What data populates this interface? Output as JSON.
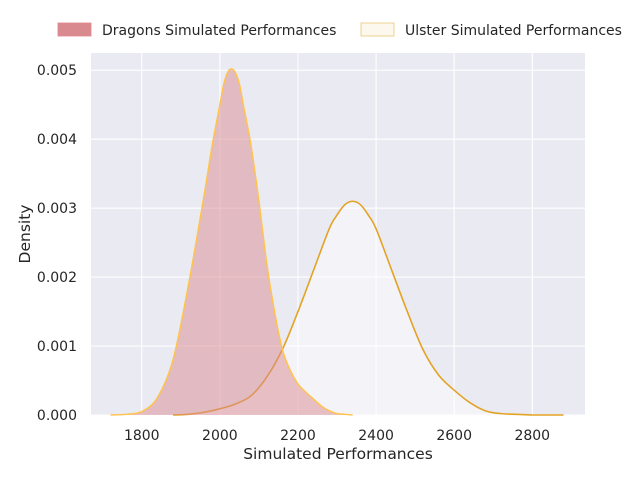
{
  "chart_data": {
    "type": "area",
    "xlabel": "Simulated Performances",
    "ylabel": "Density",
    "xlim": [
      1670,
      2935
    ],
    "ylim": [
      0,
      0.00525
    ],
    "x_ticks": [
      1800,
      2000,
      2200,
      2400,
      2600,
      2800
    ],
    "y_ticks": [
      0.0,
      0.001,
      0.002,
      0.003,
      0.004,
      0.005
    ],
    "x_tick_labels": [
      "1800",
      "2000",
      "2200",
      "2400",
      "2600",
      "2800"
    ],
    "y_tick_labels": [
      "0.000",
      "0.001",
      "0.002",
      "0.003",
      "0.004",
      "0.005"
    ],
    "grid": true,
    "legend_position": "top",
    "colors": {
      "background": "#eaeaf2",
      "grid": "#ffffff",
      "dragons_fill": "#d98a8f",
      "dragons_line": "#ffc44d",
      "ulster_fill": "#fdf8ee",
      "ulster_line": "#e3a325"
    },
    "series": [
      {
        "name": "Dragons Simulated Performances",
        "style": "filled-kde",
        "x": [
          1720,
          1760,
          1800,
          1840,
          1880,
          1920,
          1960,
          1980,
          2000,
          2010,
          2020,
          2030,
          2040,
          2050,
          2060,
          2080,
          2100,
          2120,
          2140,
          2160,
          2180,
          2200,
          2220,
          2240,
          2260,
          2280,
          2300,
          2320,
          2340
        ],
        "values": [
          0.0,
          1e-05,
          5e-05,
          0.00025,
          0.0008,
          0.0019,
          0.0032,
          0.0039,
          0.0045,
          0.0048,
          0.00497,
          0.00502,
          0.00496,
          0.0048,
          0.0045,
          0.0039,
          0.0031,
          0.0022,
          0.0015,
          0.00095,
          0.00065,
          0.00045,
          0.00033,
          0.00023,
          0.00013,
          6e-05,
          2e-05,
          1e-05,
          0.0
        ]
      },
      {
        "name": "Ulster Simulated Performances",
        "style": "kde-line",
        "x": [
          1880,
          1920,
          1960,
          2000,
          2040,
          2080,
          2120,
          2160,
          2200,
          2240,
          2280,
          2300,
          2320,
          2340,
          2360,
          2380,
          2400,
          2440,
          2480,
          2520,
          2560,
          2600,
          2640,
          2680,
          2720,
          2760,
          2800,
          2840,
          2880
        ],
        "values": [
          0.0,
          1e-05,
          4e-05,
          9e-05,
          0.00016,
          0.00028,
          0.00055,
          0.00095,
          0.0015,
          0.0021,
          0.0027,
          0.0029,
          0.00305,
          0.0031,
          0.00305,
          0.0029,
          0.0027,
          0.0021,
          0.0015,
          0.00095,
          0.00058,
          0.00036,
          0.00018,
          6e-05,
          2e-05,
          1e-05,
          0.0,
          0.0,
          0.0
        ]
      }
    ]
  }
}
